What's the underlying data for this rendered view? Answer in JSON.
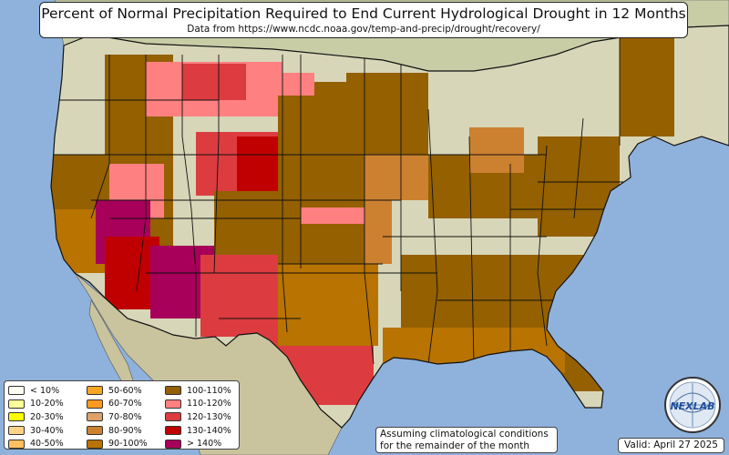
{
  "title": "Percent of Normal Precipitation Required to End Current Hydrological Drought in 12 Months",
  "subtitle": "Data from https://www.ncdc.noaa.gov/temp-and-precip/drought/recovery/",
  "note": {
    "line1": "Assuming climatological conditions",
    "line2": "for the remainder of the month"
  },
  "valid": "Valid: April 27 2025",
  "logo_text": "NEXLAB",
  "colors": {
    "ocean": "#8fb2dc",
    "land": "#d8d6b8",
    "land_green": "#a9c48e",
    "mountain": "#c9c1a0",
    "border": "#111111"
  },
  "legend": {
    "columns": [
      [
        {
          "label": "< 10%",
          "color": "#fffff0"
        },
        {
          "label": "10-20%",
          "color": "#ffff99"
        },
        {
          "label": "20-30%",
          "color": "#ffff00"
        },
        {
          "label": "30-40%",
          "color": "#ffd28a"
        },
        {
          "label": "40-50%",
          "color": "#ffc060"
        }
      ],
      [
        {
          "label": "50-60%",
          "color": "#f5a623"
        },
        {
          "label": "60-70%",
          "color": "#ff9a20"
        },
        {
          "label": "70-80%",
          "color": "#dca26a"
        },
        {
          "label": "80-90%",
          "color": "#cc8130"
        },
        {
          "label": "90-100%",
          "color": "#b87300"
        }
      ],
      [
        {
          "label": "100-110%",
          "color": "#946000"
        },
        {
          "label": "110-120%",
          "color": "#ff8080"
        },
        {
          "label": "120-130%",
          "color": "#dc3c40"
        },
        {
          "label": "130-140%",
          "color": "#c00000"
        },
        {
          "label": "> 140%",
          "color": "#a8005a"
        }
      ]
    ]
  }
}
